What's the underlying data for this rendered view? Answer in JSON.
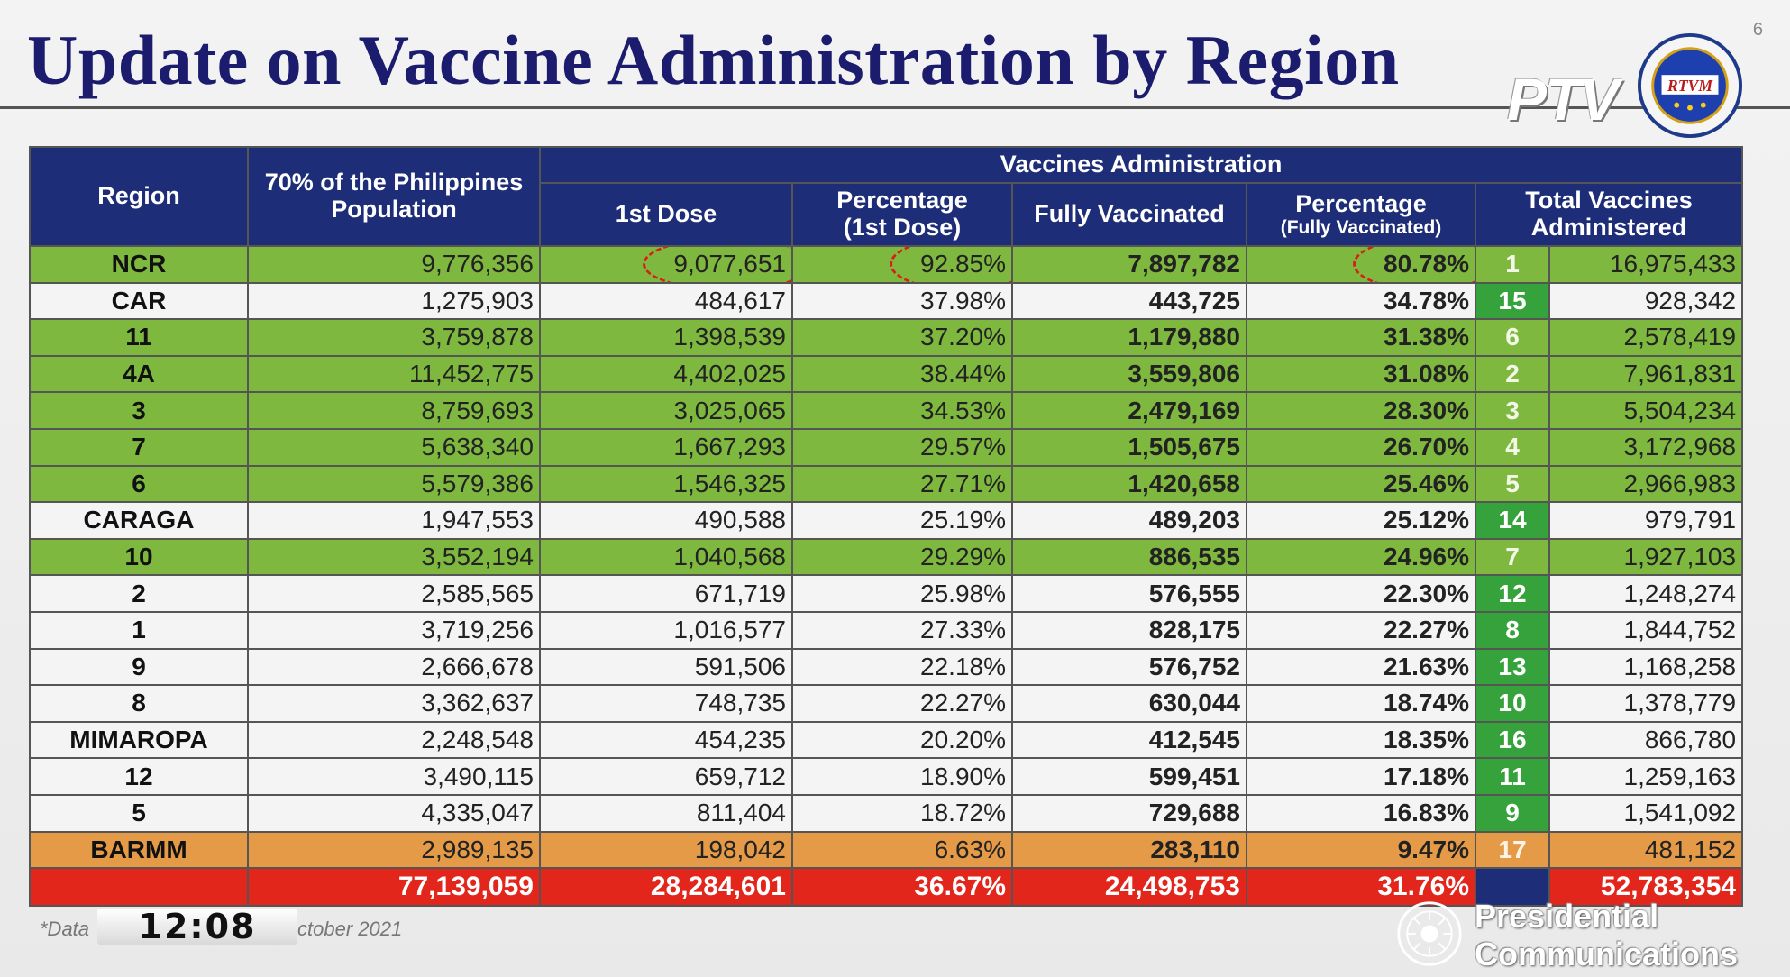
{
  "title": "Update on Vaccine Administration by Region",
  "slide_number": "6",
  "logos": {
    "ptv": "PTV",
    "seal_text": "RTVM"
  },
  "table": {
    "headers": {
      "region": "Region",
      "population": "70% of the Philippines Population",
      "group": "Vaccines Administration",
      "first_dose": "1st Dose",
      "pct_first_line1": "Percentage",
      "pct_first_line2": "(1st Dose)",
      "fully": "Fully Vaccinated",
      "pct_fully_line1": "Percentage",
      "pct_fully_line2": "(Fully Vaccinated)",
      "total": "Total Vaccines Administered"
    },
    "rows": [
      {
        "region": "NCR",
        "population": "9,776,356",
        "first_dose": "9,077,651",
        "pct_first": "92.85%",
        "fully": "7,897,782",
        "pct_fully": "80.78%",
        "rank": "1",
        "total": "16,975,433",
        "style": "green"
      },
      {
        "region": "CAR",
        "population": "1,275,903",
        "first_dose": "484,617",
        "pct_first": "37.98%",
        "fully": "443,725",
        "pct_fully": "34.78%",
        "rank": "15",
        "total": "928,342",
        "style": "white"
      },
      {
        "region": "11",
        "population": "3,759,878",
        "first_dose": "1,398,539",
        "pct_first": "37.20%",
        "fully": "1,179,880",
        "pct_fully": "31.38%",
        "rank": "6",
        "total": "2,578,419",
        "style": "green"
      },
      {
        "region": "4A",
        "population": "11,452,775",
        "first_dose": "4,402,025",
        "pct_first": "38.44%",
        "fully": "3,559,806",
        "pct_fully": "31.08%",
        "rank": "2",
        "total": "7,961,831",
        "style": "green"
      },
      {
        "region": "3",
        "population": "8,759,693",
        "first_dose": "3,025,065",
        "pct_first": "34.53%",
        "fully": "2,479,169",
        "pct_fully": "28.30%",
        "rank": "3",
        "total": "5,504,234",
        "style": "green"
      },
      {
        "region": "7",
        "population": "5,638,340",
        "first_dose": "1,667,293",
        "pct_first": "29.57%",
        "fully": "1,505,675",
        "pct_fully": "26.70%",
        "rank": "4",
        "total": "3,172,968",
        "style": "green"
      },
      {
        "region": "6",
        "population": "5,579,386",
        "first_dose": "1,546,325",
        "pct_first": "27.71%",
        "fully": "1,420,658",
        "pct_fully": "25.46%",
        "rank": "5",
        "total": "2,966,983",
        "style": "green"
      },
      {
        "region": "CARAGA",
        "population": "1,947,553",
        "first_dose": "490,588",
        "pct_first": "25.19%",
        "fully": "489,203",
        "pct_fully": "25.12%",
        "rank": "14",
        "total": "979,791",
        "style": "white"
      },
      {
        "region": "10",
        "population": "3,552,194",
        "first_dose": "1,040,568",
        "pct_first": "29.29%",
        "fully": "886,535",
        "pct_fully": "24.96%",
        "rank": "7",
        "total": "1,927,103",
        "style": "green"
      },
      {
        "region": "2",
        "population": "2,585,565",
        "first_dose": "671,719",
        "pct_first": "25.98%",
        "fully": "576,555",
        "pct_fully": "22.30%",
        "rank": "12",
        "total": "1,248,274",
        "style": "white"
      },
      {
        "region": "1",
        "population": "3,719,256",
        "first_dose": "1,016,577",
        "pct_first": "27.33%",
        "fully": "828,175",
        "pct_fully": "22.27%",
        "rank": "8",
        "total": "1,844,752",
        "style": "white"
      },
      {
        "region": "9",
        "population": "2,666,678",
        "first_dose": "591,506",
        "pct_first": "22.18%",
        "fully": "576,752",
        "pct_fully": "21.63%",
        "rank": "13",
        "total": "1,168,258",
        "style": "white"
      },
      {
        "region": "8",
        "population": "3,362,637",
        "first_dose": "748,735",
        "pct_first": "22.27%",
        "fully": "630,044",
        "pct_fully": "18.74%",
        "rank": "10",
        "total": "1,378,779",
        "style": "white"
      },
      {
        "region": "MIMAROPA",
        "population": "2,248,548",
        "first_dose": "454,235",
        "pct_first": "20.20%",
        "fully": "412,545",
        "pct_fully": "18.35%",
        "rank": "16",
        "total": "866,780",
        "style": "white"
      },
      {
        "region": "12",
        "population": "3,490,115",
        "first_dose": "659,712",
        "pct_first": "18.90%",
        "fully": "599,451",
        "pct_fully": "17.18%",
        "rank": "11",
        "total": "1,259,163",
        "style": "white"
      },
      {
        "region": "5",
        "population": "4,335,047",
        "first_dose": "811,404",
        "pct_first": "18.72%",
        "fully": "729,688",
        "pct_fully": "16.83%",
        "rank": "9",
        "total": "1,541,092",
        "style": "white"
      },
      {
        "region": "BARMM",
        "population": "2,989,135",
        "first_dose": "198,042",
        "pct_first": "6.63%",
        "fully": "283,110",
        "pct_fully": "9.47%",
        "rank": "17",
        "total": "481,152",
        "style": "orange"
      }
    ],
    "totals": {
      "population": "77,139,059",
      "first_dose": "28,284,601",
      "pct_first": "36.67%",
      "fully": "24,498,753",
      "pct_fully": "31.76%",
      "total": "52,783,354"
    }
  },
  "footnote": {
    "left": "*Data",
    "right": "ctober 2021"
  },
  "clock": "12:08",
  "branding": {
    "line1": "Presidential",
    "line2": "Communications"
  },
  "colors": {
    "header_blue": "#1e2d78",
    "row_green": "#7fb83f",
    "rank_green": "#36a23c",
    "row_orange": "#e59a47",
    "total_red": "#e2261c",
    "title_navy": "#1c1c6e"
  }
}
